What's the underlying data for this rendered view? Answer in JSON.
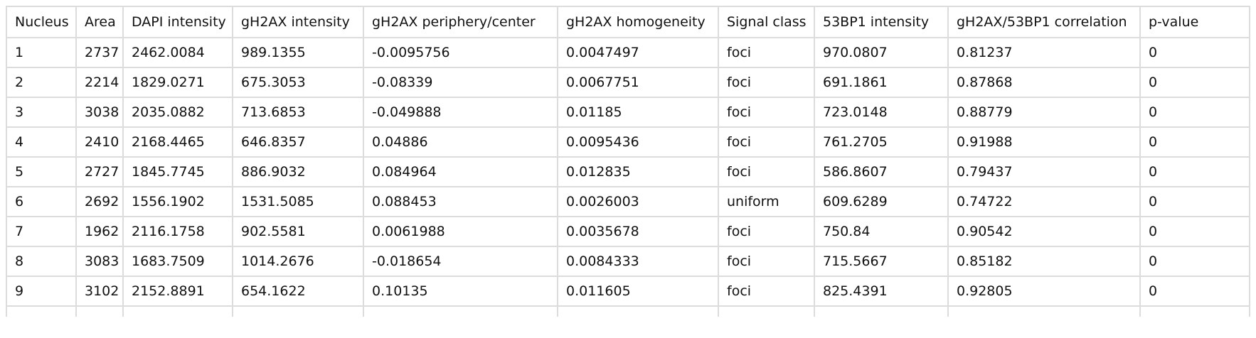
{
  "table": {
    "columns": [
      "Nucleus",
      "Area",
      "DAPI intensity",
      "gH2AX intensity",
      "gH2AX periphery/center",
      "gH2AX homogeneity",
      "Signal class",
      "53BP1 intensity",
      "gH2AX/53BP1 correlation",
      "p-value"
    ],
    "rows": [
      [
        "1",
        "2737",
        "2462.0084",
        "989.1355",
        "-0.0095756",
        "0.0047497",
        "foci",
        "970.0807",
        "0.81237",
        "0"
      ],
      [
        "2",
        "2214",
        "1829.0271",
        "675.3053",
        "-0.08339",
        "0.0067751",
        "foci",
        "691.1861",
        "0.87868",
        "0"
      ],
      [
        "3",
        "3038",
        "2035.0882",
        "713.6853",
        "-0.049888",
        "0.01185",
        "foci",
        "723.0148",
        "0.88779",
        "0"
      ],
      [
        "4",
        "2410",
        "2168.4465",
        "646.8357",
        "0.04886",
        "0.0095436",
        "foci",
        "761.2705",
        "0.91988",
        "0"
      ],
      [
        "5",
        "2727",
        "1845.7745",
        "886.9032",
        "0.084964",
        "0.012835",
        "foci",
        "586.8607",
        "0.79437",
        "0"
      ],
      [
        "6",
        "2692",
        "1556.1902",
        "1531.5085",
        "0.088453",
        "0.0026003",
        "uniform",
        "609.6289",
        "0.74722",
        "0"
      ],
      [
        "7",
        "1962",
        "2116.1758",
        "902.5581",
        "0.0061988",
        "0.0035678",
        "foci",
        "750.84",
        "0.90542",
        "0"
      ],
      [
        "8",
        "3083",
        "1683.7509",
        "1014.2676",
        "-0.018654",
        "0.0084333",
        "foci",
        "715.5667",
        "0.85182",
        "0"
      ],
      [
        "9",
        "3102",
        "2152.8891",
        "654.1622",
        "0.10135",
        "0.011605",
        "foci",
        "825.4391",
        "0.92805",
        "0"
      ]
    ]
  }
}
